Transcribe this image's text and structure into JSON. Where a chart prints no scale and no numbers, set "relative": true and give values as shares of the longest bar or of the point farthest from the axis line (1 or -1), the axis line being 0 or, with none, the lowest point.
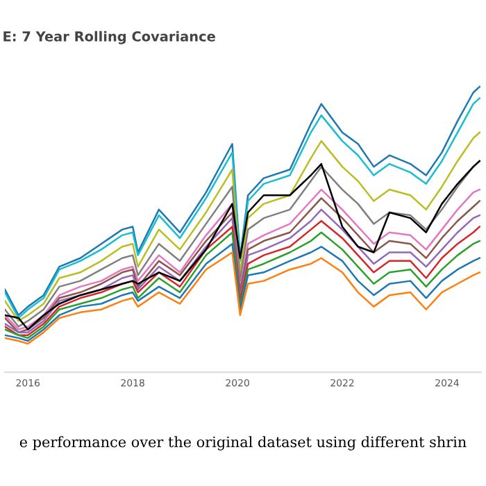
{
  "chart_data": {
    "type": "line",
    "title": "E: 7 Year Rolling Covariance",
    "annotations": [
      "e performance over the original dataset using different shrin"
    ],
    "relative": true,
    "legend": false,
    "x": [
      2015.56,
      2015.82,
      2016.0,
      2016.3,
      2016.6,
      2017.0,
      2017.4,
      2017.8,
      2018.0,
      2018.1,
      2018.5,
      2018.9,
      2019.4,
      2019.9,
      2020.05,
      2020.2,
      2020.5,
      2021.0,
      2021.4,
      2021.6,
      2022.0,
      2022.3,
      2022.6,
      2022.9,
      2023.3,
      2023.6,
      2023.9,
      2024.2,
      2024.5,
      2024.62
    ],
    "xlim": [
      2015.56,
      2024.65
    ],
    "xticks": [
      2016,
      2018,
      2020,
      2022,
      2024
    ],
    "series": [
      {
        "color": "#1f77b4",
        "values": [
          0.29,
          0.2,
          0.23,
          0.27,
          0.37,
          0.4,
          0.45,
          0.5,
          0.51,
          0.42,
          0.57,
          0.49,
          0.63,
          0.8,
          0.4,
          0.62,
          0.68,
          0.71,
          0.87,
          0.94,
          0.84,
          0.8,
          0.72,
          0.76,
          0.73,
          0.69,
          0.77,
          0.88,
          0.98,
          1.0
        ]
      },
      {
        "color": "#17becf",
        "values": [
          0.28,
          0.19,
          0.22,
          0.26,
          0.36,
          0.39,
          0.43,
          0.48,
          0.49,
          0.41,
          0.55,
          0.47,
          0.61,
          0.77,
          0.39,
          0.6,
          0.66,
          0.69,
          0.84,
          0.9,
          0.81,
          0.76,
          0.69,
          0.73,
          0.7,
          0.66,
          0.74,
          0.84,
          0.94,
          0.96
        ]
      },
      {
        "color": "#bcbd22",
        "values": [
          0.25,
          0.18,
          0.2,
          0.24,
          0.33,
          0.35,
          0.39,
          0.44,
          0.45,
          0.37,
          0.5,
          0.43,
          0.56,
          0.71,
          0.35,
          0.54,
          0.59,
          0.62,
          0.75,
          0.81,
          0.72,
          0.67,
          0.6,
          0.64,
          0.62,
          0.57,
          0.65,
          0.74,
          0.82,
          0.84
        ]
      },
      {
        "color": "#7f7f7f",
        "values": [
          0.22,
          0.16,
          0.18,
          0.22,
          0.3,
          0.32,
          0.36,
          0.4,
          0.41,
          0.34,
          0.45,
          0.39,
          0.52,
          0.65,
          0.32,
          0.5,
          0.54,
          0.57,
          0.67,
          0.72,
          0.64,
          0.59,
          0.52,
          0.56,
          0.55,
          0.5,
          0.57,
          0.65,
          0.72,
          0.74
        ]
      },
      {
        "color": "#e377c2",
        "values": [
          0.2,
          0.15,
          0.16,
          0.2,
          0.27,
          0.3,
          0.32,
          0.36,
          0.37,
          0.32,
          0.41,
          0.35,
          0.48,
          0.59,
          0.29,
          0.45,
          0.48,
          0.52,
          0.6,
          0.64,
          0.57,
          0.51,
          0.45,
          0.49,
          0.48,
          0.43,
          0.5,
          0.57,
          0.63,
          0.64
        ]
      },
      {
        "color": "#8c564b",
        "values": [
          0.19,
          0.14,
          0.15,
          0.19,
          0.26,
          0.28,
          0.31,
          0.35,
          0.36,
          0.3,
          0.39,
          0.34,
          0.46,
          0.56,
          0.28,
          0.43,
          0.46,
          0.49,
          0.57,
          0.61,
          0.54,
          0.48,
          0.42,
          0.46,
          0.45,
          0.4,
          0.47,
          0.53,
          0.58,
          0.6
        ]
      },
      {
        "color": "#9467bd",
        "values": [
          0.17,
          0.14,
          0.14,
          0.18,
          0.25,
          0.27,
          0.29,
          0.33,
          0.34,
          0.29,
          0.37,
          0.32,
          0.44,
          0.54,
          0.26,
          0.41,
          0.43,
          0.47,
          0.53,
          0.57,
          0.5,
          0.44,
          0.38,
          0.42,
          0.42,
          0.37,
          0.43,
          0.49,
          0.54,
          0.55
        ]
      },
      {
        "color": "#d62728",
        "values": [
          0.16,
          0.13,
          0.13,
          0.17,
          0.23,
          0.26,
          0.28,
          0.31,
          0.32,
          0.28,
          0.35,
          0.3,
          0.43,
          0.51,
          0.25,
          0.38,
          0.41,
          0.44,
          0.5,
          0.53,
          0.47,
          0.41,
          0.35,
          0.39,
          0.39,
          0.33,
          0.4,
          0.45,
          0.49,
          0.51
        ]
      },
      {
        "color": "#2ca02c",
        "values": [
          0.15,
          0.13,
          0.12,
          0.16,
          0.22,
          0.24,
          0.26,
          0.29,
          0.3,
          0.26,
          0.33,
          0.28,
          0.41,
          0.49,
          0.23,
          0.36,
          0.38,
          0.42,
          0.46,
          0.49,
          0.43,
          0.37,
          0.31,
          0.35,
          0.36,
          0.3,
          0.36,
          0.41,
          0.45,
          0.46
        ]
      },
      {
        "color": "#1f77b4",
        "values": [
          0.13,
          0.12,
          0.11,
          0.15,
          0.2,
          0.23,
          0.24,
          0.27,
          0.28,
          0.25,
          0.3,
          0.26,
          0.38,
          0.45,
          0.22,
          0.34,
          0.35,
          0.39,
          0.42,
          0.44,
          0.39,
          0.32,
          0.27,
          0.31,
          0.32,
          0.26,
          0.32,
          0.36,
          0.39,
          0.4
        ]
      },
      {
        "color": "#ff7f0e",
        "values": [
          0.12,
          0.11,
          0.1,
          0.14,
          0.19,
          0.21,
          0.22,
          0.25,
          0.26,
          0.23,
          0.28,
          0.24,
          0.36,
          0.42,
          0.2,
          0.31,
          0.32,
          0.36,
          0.38,
          0.4,
          0.35,
          0.28,
          0.23,
          0.27,
          0.28,
          0.22,
          0.28,
          0.31,
          0.34,
          0.35
        ]
      },
      {
        "color": "#000000",
        "values": [
          0.2,
          0.19,
          0.15,
          0.2,
          0.24,
          0.27,
          0.29,
          0.31,
          0.32,
          0.31,
          0.35,
          0.32,
          0.43,
          0.59,
          0.4,
          0.56,
          0.62,
          0.62,
          0.69,
          0.73,
          0.51,
          0.44,
          0.42,
          0.56,
          0.54,
          0.49,
          0.59,
          0.66,
          0.72,
          0.74
        ]
      }
    ]
  }
}
